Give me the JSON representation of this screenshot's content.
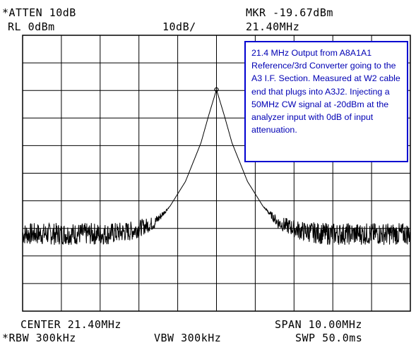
{
  "header": {
    "atten": "*ATTEN 10dB",
    "ref_level": "RL 0dBm",
    "scale": "10dB/",
    "marker_level": "MKR -19.67dBm",
    "marker_freq": "21.40MHz"
  },
  "footer": {
    "center": "CENTER 21.40MHz",
    "span": "SPAN 10.00MHz",
    "rbw": "*RBW 300kHz",
    "vbw": "VBW 300kHz",
    "sweep": "SWP 50.0ms"
  },
  "annotation": "21.4 MHz Output from A8A1A1 Reference/3rd Converter going to the A3 I.F. Section. Measured at W2 cable end that plugs into A3J2. Injecting a 50MHz CW signal  at -20dBm at the analyzer input with 0dB of input attenuation.",
  "chart_data": {
    "type": "line",
    "x_center_mhz": 21.4,
    "x_span_mhz": 10.0,
    "xlim": [
      16.4,
      26.4
    ],
    "ylim": [
      -100,
      0
    ],
    "y_ref_dbm": 0,
    "y_scale_db_per_div": 10,
    "grid": true,
    "marker": {
      "x": 21.4,
      "y": -19.67
    },
    "series": [
      {
        "x": [
          16.4,
          17.0,
          18.0,
          18.6,
          19.2,
          19.8,
          20.2,
          20.6,
          21.0,
          21.2,
          21.4,
          21.6,
          21.8,
          22.2,
          22.6,
          23.0,
          23.6,
          24.2,
          24.8,
          25.6,
          26.4
        ],
        "values": [
          -72,
          -72,
          -72,
          -72,
          -71,
          -68,
          -62,
          -53,
          -39,
          -29,
          -19.7,
          -29,
          -39,
          -53,
          -62,
          -68,
          -71,
          -72,
          -72,
          -72,
          -72
        ]
      }
    ],
    "trace_noise_db": 4,
    "colors": {
      "trace": "#000000",
      "grid": "#000000",
      "annotation_text": "#0000b4",
      "annotation_border": "#0000d0"
    }
  }
}
